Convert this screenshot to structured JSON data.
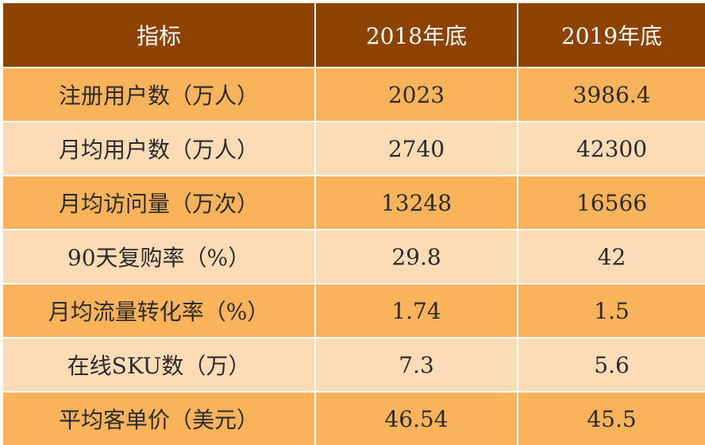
{
  "table": {
    "headers": [
      "指标",
      "2018年底",
      "2019年底"
    ],
    "rows": [
      {
        "label": "注册用户数（万人）",
        "y2018": "2023",
        "y2019": "3986.4"
      },
      {
        "label": "月均用户数（万人）",
        "y2018": "2740",
        "y2019": "42300"
      },
      {
        "label": "月均访问量（万次）",
        "y2018": "13248",
        "y2019": "16566"
      },
      {
        "label": "90天复购率（%）",
        "y2018": "29.8",
        "y2019": "42"
      },
      {
        "label": "月均流量转化率（%）",
        "y2018": "1.74",
        "y2019": "1.5"
      },
      {
        "label": "在线SKU数（万）",
        "y2018": "7.3",
        "y2019": "5.6"
      },
      {
        "label": "平均客单价（美元）",
        "y2018": "46.54",
        "y2019": "45.5"
      }
    ]
  },
  "colors": {
    "header_bg": "#8d4200",
    "row_dark": "#f9b35a",
    "row_light": "#fcdcb6"
  }
}
